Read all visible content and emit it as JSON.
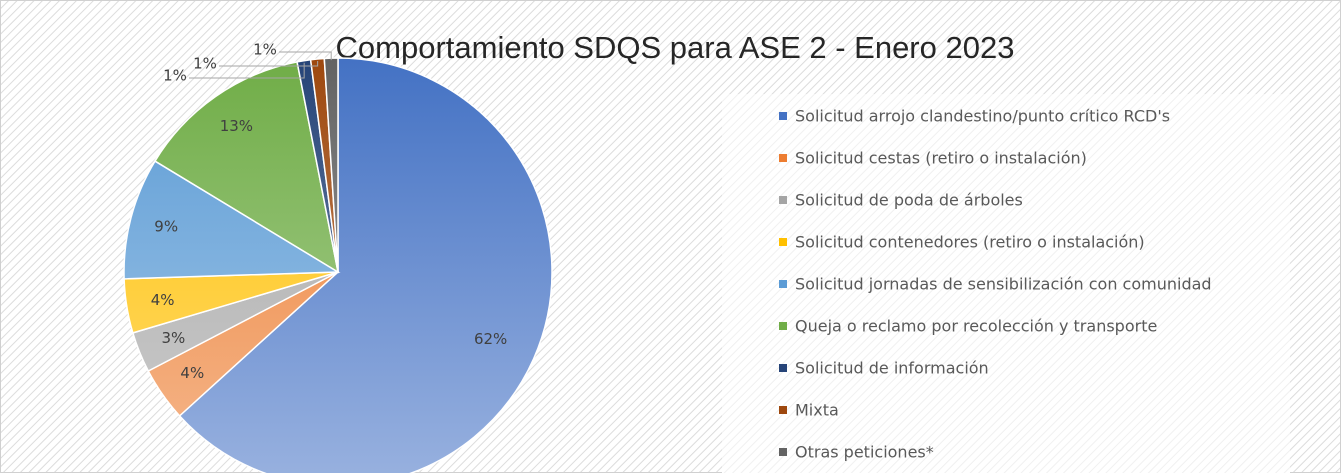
{
  "chart_data": {
    "type": "pie",
    "title": "Comportamiento SDQS para ASE 2 - Enero 2023",
    "categories": [
      "Solicitud arrojo clandestino/punto crítico RCD's",
      "Solicitud cestas (retiro o instalación)",
      "Solicitud de poda de árboles",
      "Solicitud contenedores (retiro o instalación)",
      "Solicitud jornadas de sensibilización con comunidad",
      "Queja o reclamo por recolección y transporte",
      "Solicitud de información",
      "Mixta",
      "Otras peticiones*"
    ],
    "values": [
      62,
      4,
      3,
      4,
      9,
      13,
      1,
      1,
      1
    ],
    "value_labels": [
      "62%",
      "4%",
      "3%",
      "4%",
      "9%",
      "13%",
      "1%",
      "1%",
      "1%"
    ],
    "colors": [
      "#4472c4",
      "#ed7d31",
      "#a5a5a5",
      "#ffc000",
      "#5b9bd5",
      "#70ad47",
      "#264478",
      "#9e480e",
      "#636363"
    ],
    "legend": "right"
  }
}
